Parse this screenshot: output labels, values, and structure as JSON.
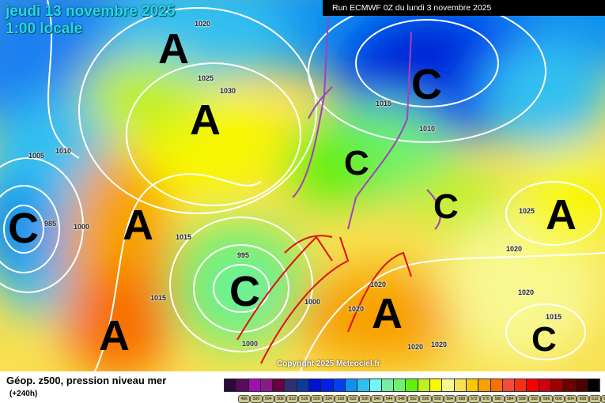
{
  "header": {
    "date": "jeudi 13 novembre 2025",
    "time": "1:00 locale",
    "run": "Run ECMWF 0Z du lundi 3 novembre 2025"
  },
  "copyright": "Copyright 2025 Meteociel.fr",
  "legend": {
    "title": "Géop. z500, pression niveau mer",
    "subtitle": "(+240h)",
    "labels": [
      "496",
      "500",
      "504",
      "508",
      "512",
      "516",
      "520",
      "524",
      "528",
      "532",
      "536",
      "540",
      "544",
      "548",
      "552",
      "556",
      "560",
      "564",
      "568",
      "572",
      "576",
      "580",
      "584",
      "588",
      "592",
      "596",
      "600",
      "604",
      "608",
      "612",
      "616"
    ],
    "colors": [
      "#2a0a3a",
      "#5a0a5a",
      "#a010b0",
      "#8a1a8a",
      "#6a0040",
      "#303070",
      "#0a3a9a",
      "#0010d0",
      "#0020f0",
      "#0040f0",
      "#1090f0",
      "#30c0f0",
      "#70f8f8",
      "#70f0a0",
      "#70f070",
      "#60f010",
      "#c0f020",
      "#f8f800",
      "#f8f890",
      "#f8e050",
      "#f8c800",
      "#f8a000",
      "#f87000",
      "#f84838",
      "#f83010",
      "#f80000",
      "#d00010",
      "#a00000",
      "#700000",
      "#500000",
      "#000000"
    ]
  },
  "centers": [
    {
      "label": "A",
      "type": "high"
    },
    {
      "label": "A",
      "type": "high"
    },
    {
      "label": "A",
      "type": "high"
    },
    {
      "label": "A",
      "type": "high"
    },
    {
      "label": "A",
      "type": "high"
    },
    {
      "label": "A",
      "type": "high"
    },
    {
      "label": "C",
      "type": "low"
    },
    {
      "label": "C",
      "type": "low"
    },
    {
      "label": "C",
      "type": "low"
    },
    {
      "label": "C",
      "type": "low"
    },
    {
      "label": "C",
      "type": "low"
    },
    {
      "label": "C",
      "type": "low"
    }
  ],
  "isobar_labels": [
    "1020",
    "1025",
    "1030",
    "1010",
    "1005",
    "985",
    "1000",
    "1015",
    "995",
    "1015",
    "1000",
    "1020",
    "1020",
    "1015",
    "1010",
    "1020",
    "1025",
    "1020",
    "1015",
    "1020",
    "1000",
    "1020"
  ]
}
